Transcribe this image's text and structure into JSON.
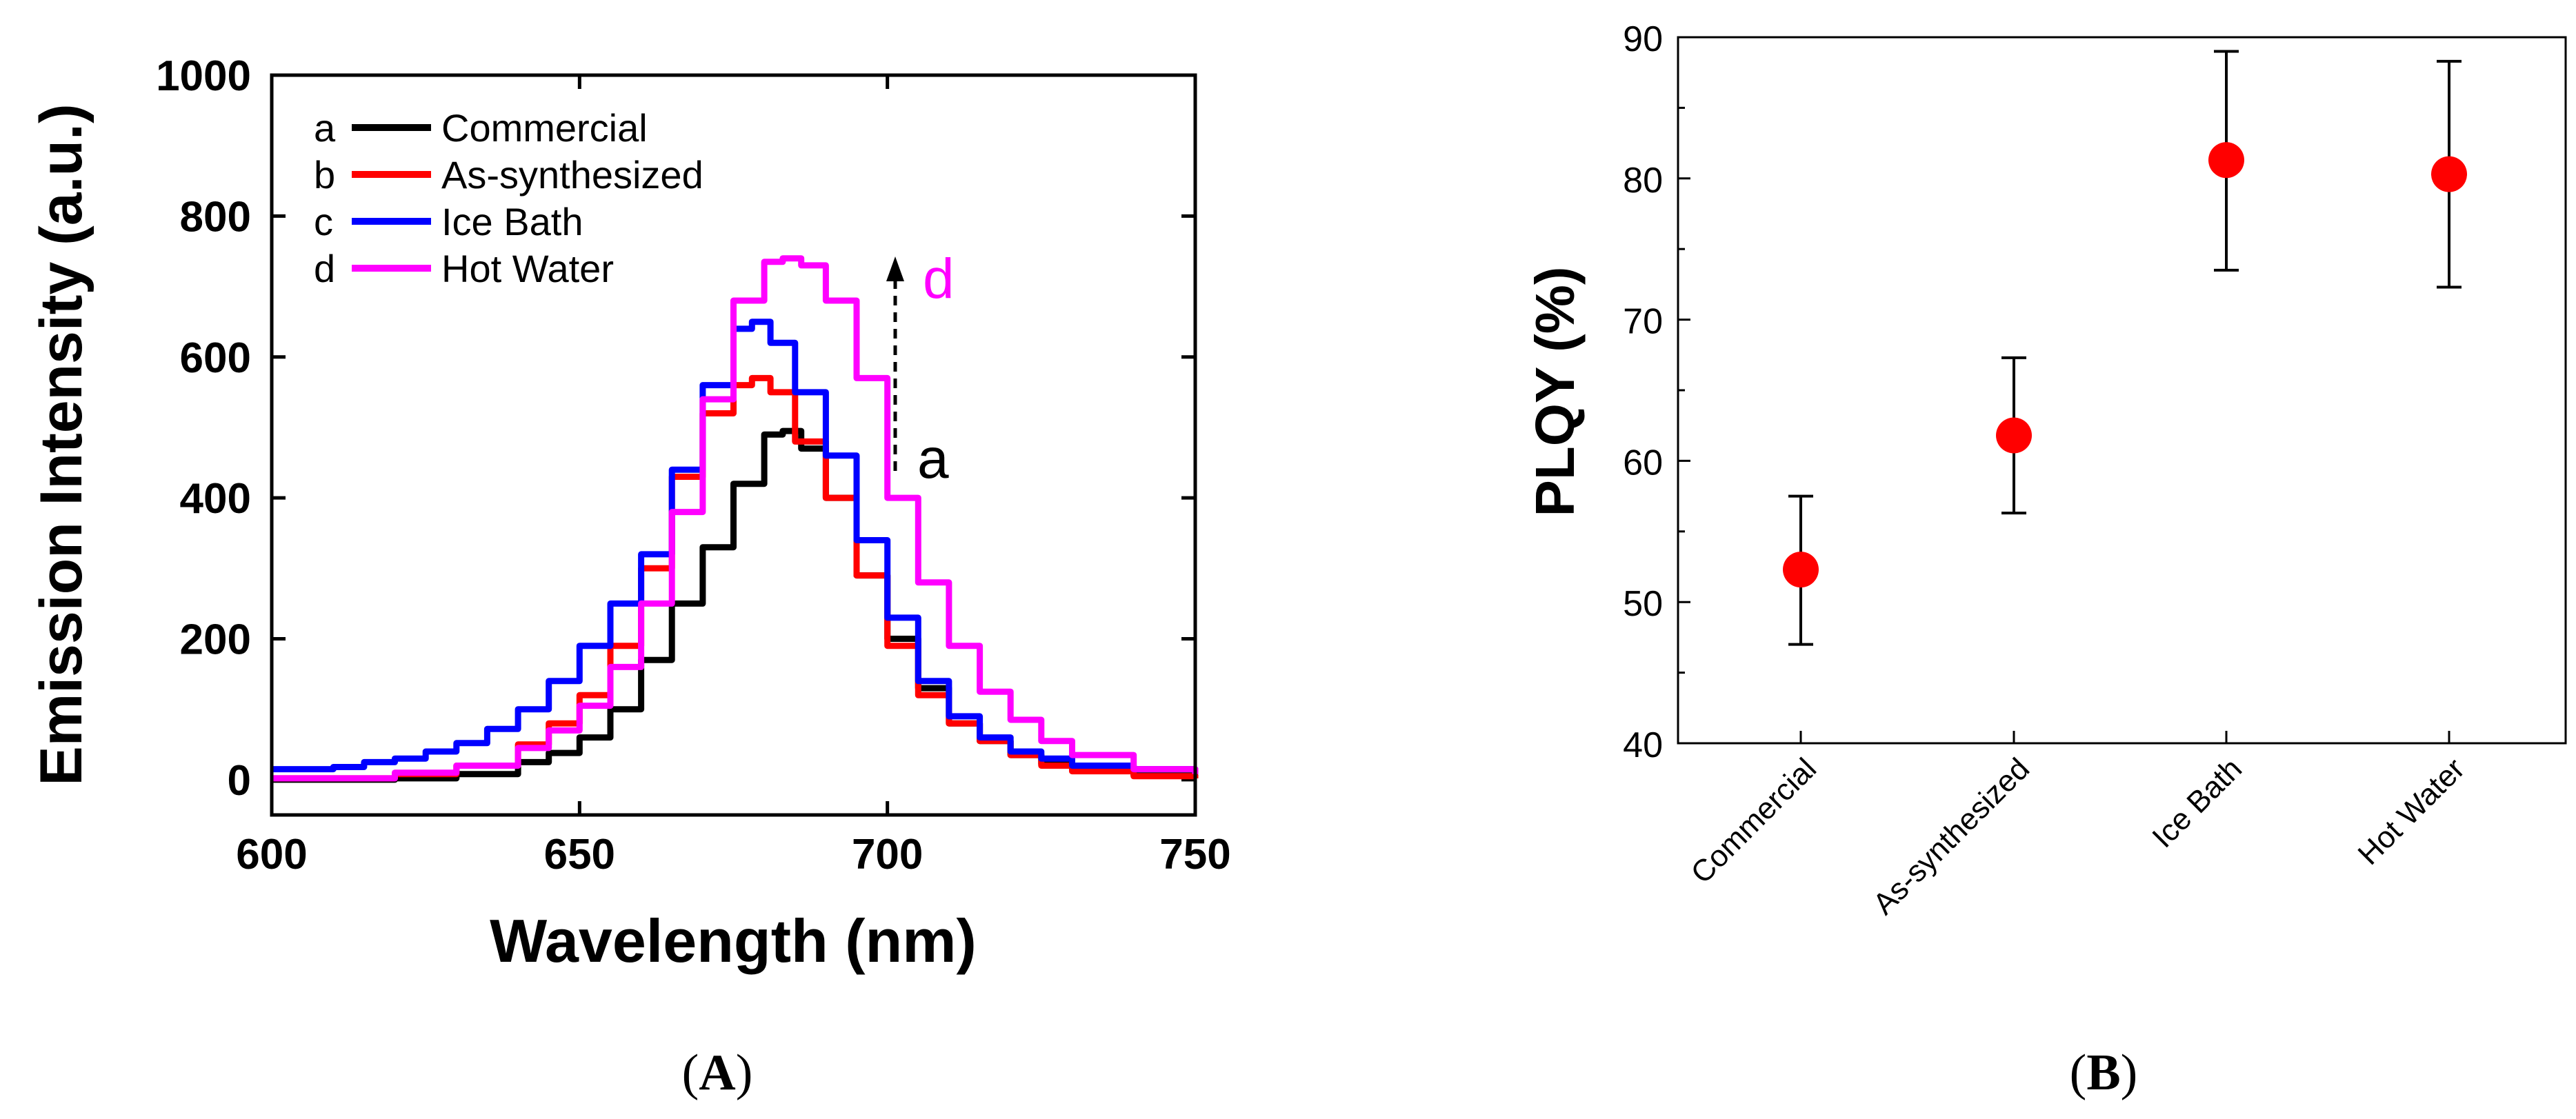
{
  "chart_data": [
    {
      "type": "line",
      "panel": "A",
      "xlabel": "Wavelength (nm)",
      "ylabel": "Emission Intensity (a.u.)",
      "xlim": [
        600,
        750
      ],
      "ylim": [
        -50,
        1000
      ],
      "xticks": [
        600,
        650,
        700,
        750
      ],
      "yticks": [
        0,
        200,
        400,
        600,
        800,
        1000
      ],
      "legend_position": "top-left",
      "annotation": {
        "from_label": "a",
        "to_label": "d",
        "x": 701,
        "y_from": 440,
        "y_to": 740
      },
      "series": [
        {
          "key": "a",
          "name": "Commercial",
          "color": "#000000",
          "x": [
            600,
            620,
            630,
            640,
            645,
            650,
            655,
            660,
            665,
            670,
            675,
            680,
            683,
            686,
            690,
            695,
            700,
            705,
            710,
            715,
            720,
            725,
            730,
            740,
            750
          ],
          "y": [
            0,
            2,
            8,
            25,
            38,
            60,
            100,
            170,
            250,
            330,
            420,
            490,
            495,
            470,
            400,
            290,
            200,
            130,
            80,
            55,
            35,
            22,
            14,
            6,
            2
          ]
        },
        {
          "key": "b",
          "name": "As-synthesized",
          "color": "#ff0000",
          "x": [
            600,
            620,
            630,
            640,
            645,
            650,
            655,
            660,
            665,
            670,
            675,
            678,
            681,
            685,
            690,
            695,
            700,
            705,
            710,
            715,
            720,
            725,
            730,
            740,
            750
          ],
          "y": [
            2,
            8,
            20,
            50,
            80,
            120,
            190,
            300,
            430,
            520,
            560,
            570,
            550,
            480,
            400,
            290,
            190,
            120,
            80,
            55,
            35,
            20,
            12,
            5,
            2
          ]
        },
        {
          "key": "c",
          "name": "Ice Bath",
          "color": "#0000ff",
          "x": [
            600,
            610,
            615,
            620,
            625,
            630,
            635,
            640,
            645,
            650,
            655,
            660,
            665,
            670,
            675,
            678,
            681,
            685,
            690,
            695,
            700,
            705,
            710,
            715,
            720,
            725,
            730,
            740,
            745,
            750
          ],
          "y": [
            15,
            18,
            25,
            30,
            40,
            52,
            72,
            100,
            140,
            190,
            250,
            320,
            440,
            560,
            640,
            650,
            620,
            550,
            460,
            340,
            230,
            140,
            90,
            60,
            40,
            30,
            20,
            15,
            15,
            10
          ]
        },
        {
          "key": "d",
          "name": "Hot Water",
          "color": "#ff00ff",
          "x": [
            600,
            620,
            630,
            640,
            645,
            650,
            655,
            660,
            665,
            670,
            675,
            680,
            683,
            686,
            690,
            695,
            700,
            705,
            710,
            715,
            720,
            725,
            730,
            740,
            750
          ],
          "y": [
            2,
            10,
            20,
            45,
            70,
            105,
            160,
            250,
            380,
            540,
            680,
            735,
            740,
            730,
            680,
            570,
            400,
            280,
            190,
            125,
            85,
            55,
            35,
            15,
            8
          ]
        }
      ],
      "caption": "A"
    },
    {
      "type": "scatter",
      "panel": "B",
      "ylabel": "PLQY (%)",
      "ylim": [
        40,
        90
      ],
      "yticks": [
        40,
        50,
        60,
        70,
        80,
        90
      ],
      "categories": [
        "Commercial",
        "As-synthesized",
        "Ice Bath",
        "Hot Water"
      ],
      "values": [
        52.3,
        61.8,
        81.3,
        80.3
      ],
      "error_low": [
        47.0,
        56.3,
        73.5,
        72.3
      ],
      "error_high": [
        57.5,
        67.3,
        89.0,
        88.3
      ],
      "marker_color": "#ff0000",
      "caption": "B"
    }
  ]
}
